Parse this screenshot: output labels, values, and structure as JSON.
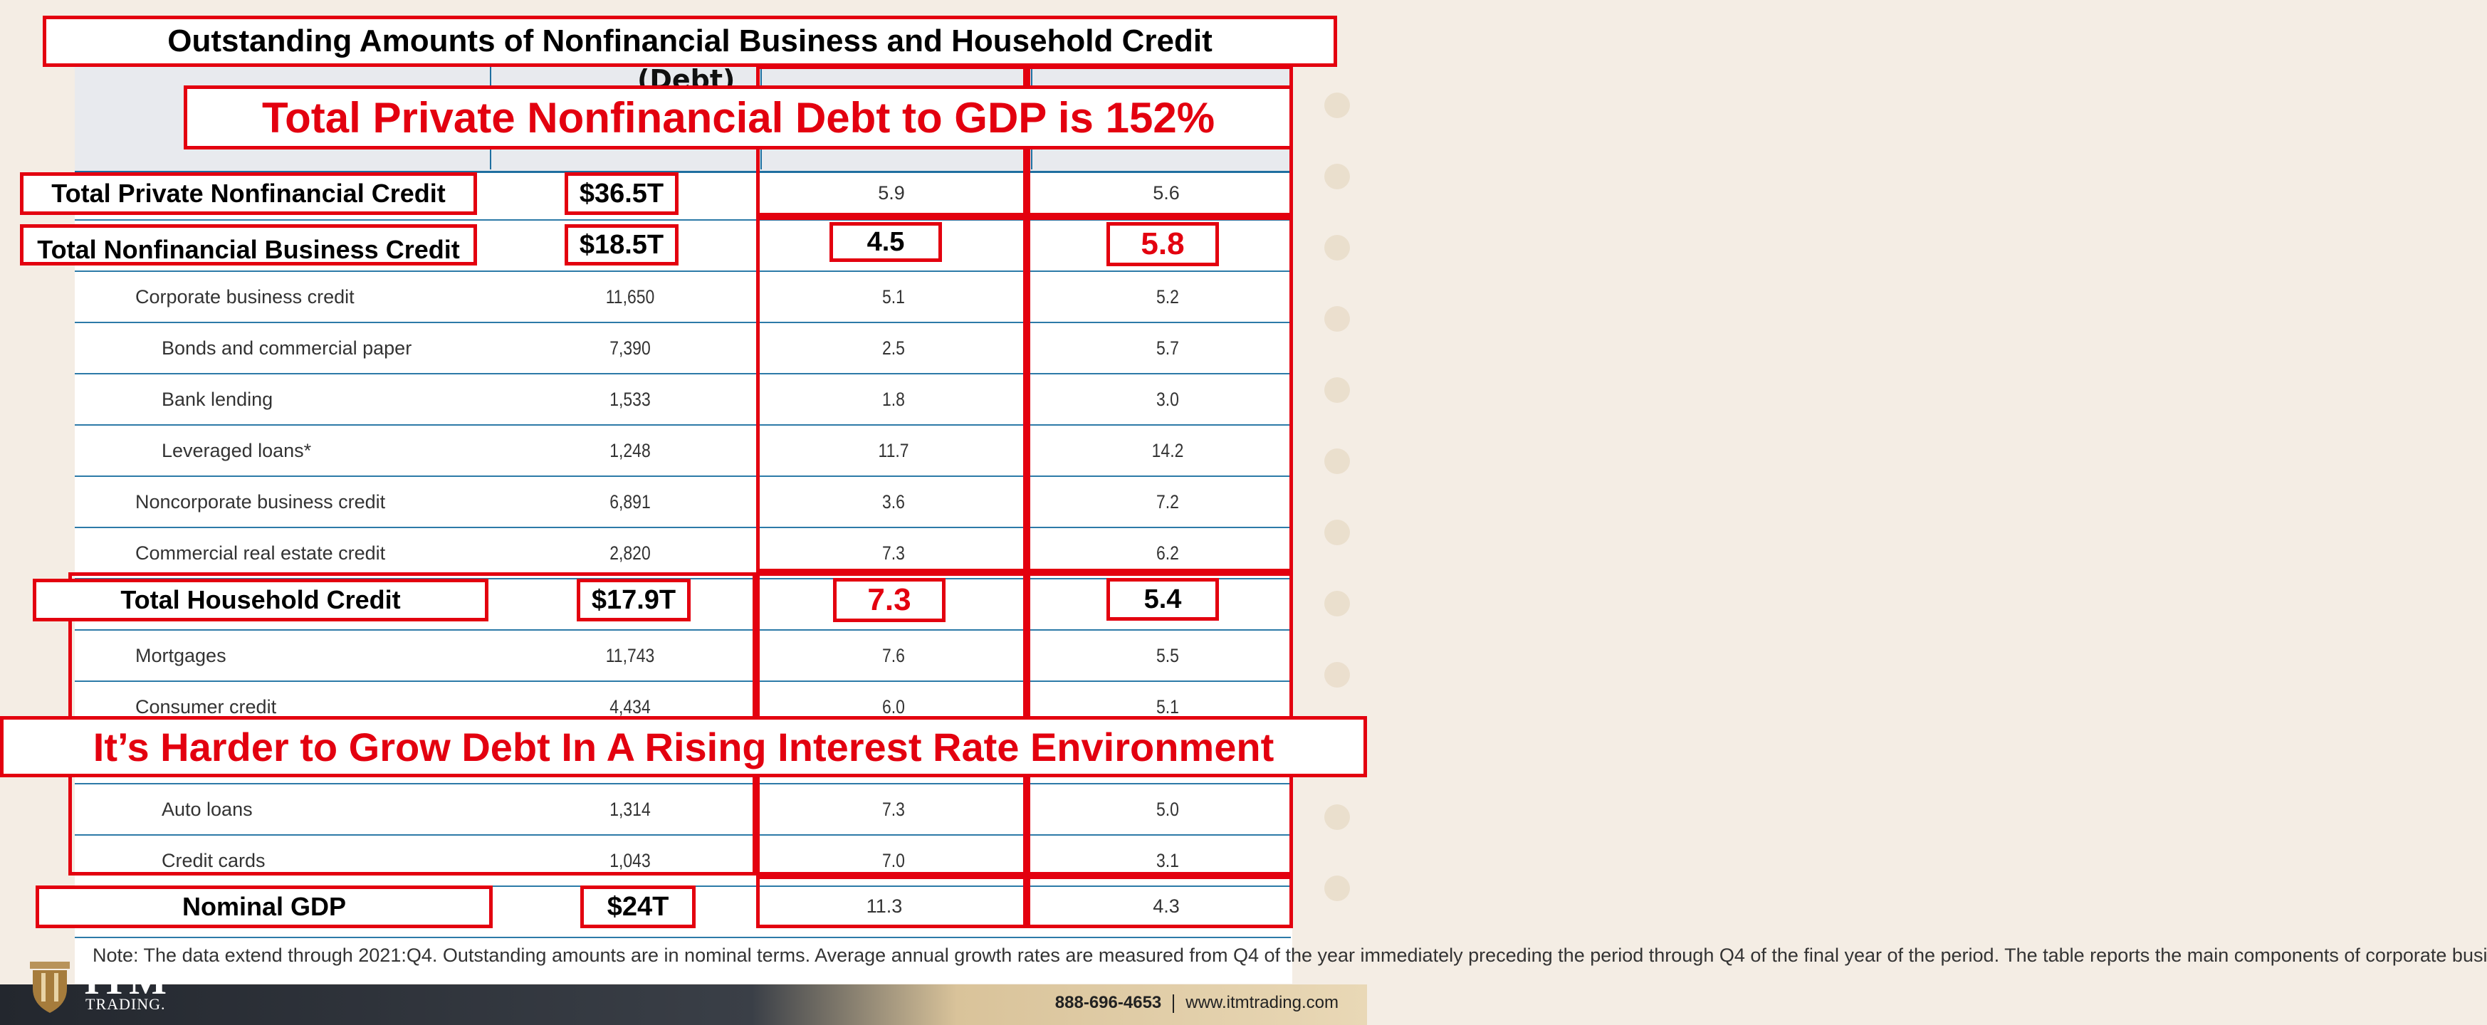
{
  "title": "Outstanding Amounts of Nonfinancial Business and Household Credit",
  "header_partial": "(Debt)",
  "headline_top": "Total Private Nonfinancial Debt to GDP is 152%",
  "headline_bottom": "It’s Harder to Grow Debt In A Rising Interest Rate Environment",
  "rows": [
    {
      "label": "Corporate business credit",
      "v1": "11,650",
      "v2": "5.1",
      "v3": "5.2"
    },
    {
      "label": "Bonds and commercial paper",
      "v1": "7,390",
      "v2": "2.5",
      "v3": "5.7"
    },
    {
      "label": "Bank lending",
      "v1": "1,533",
      "v2": "1.8",
      "v3": "3.0"
    },
    {
      "label": "Leveraged loans*",
      "v1": "1,248",
      "v2": "11.7",
      "v3": "14.2"
    },
    {
      "label": "Noncorporate business credit",
      "v1": "6,891",
      "v2": "3.6",
      "v3": "7.2"
    },
    {
      "label": "Commercial real estate credit",
      "v1": "2,820",
      "v2": "7.3",
      "v3": "6.2"
    },
    {
      "label": "Mortgages",
      "v1": "11,743",
      "v2": "7.6",
      "v3": "5.5"
    },
    {
      "label": "Consumer credit",
      "v1": "4,434",
      "v2": "6.0",
      "v3": "5.1"
    },
    {
      "label": "Auto loans",
      "v1": "1,314",
      "v2": "7.3",
      "v3": "5.0"
    },
    {
      "label": "Credit cards",
      "v1": "1,043",
      "v2": "7.0",
      "v3": "3.1"
    }
  ],
  "highlights": {
    "private": {
      "label": "Total Private Nonfinancial Credit",
      "amount": "$36.5T",
      "g1": "5.9",
      "g2": "5.6"
    },
    "business": {
      "label": "Total Nonfinancial Business Credit",
      "amount": "$18.5T",
      "g1": "4.5",
      "g2": "5.8"
    },
    "household": {
      "label": "Total Household Credit",
      "amount": "$17.9T",
      "g1": "7.3",
      "g2": "5.4"
    },
    "gdp": {
      "label": "Nominal GDP",
      "amount": "$24T",
      "g1": "11.3",
      "g2": "4.3"
    }
  },
  "note": "Note: The data extend through 2021:Q4. Outstanding amounts are in nominal terms. Average annual growth rates are measured from Q4 of the year immediately preceding the period through Q4 of the final year of the period. The table reports the main components of corporate busi",
  "brand": {
    "name": "ITM",
    "sub": "TRADING.",
    "phone": "888-696-4653",
    "website": "www.itmtrading.com"
  },
  "colors": {
    "accent_red": "#e3000f",
    "rule_blue": "#1f6fa0"
  }
}
